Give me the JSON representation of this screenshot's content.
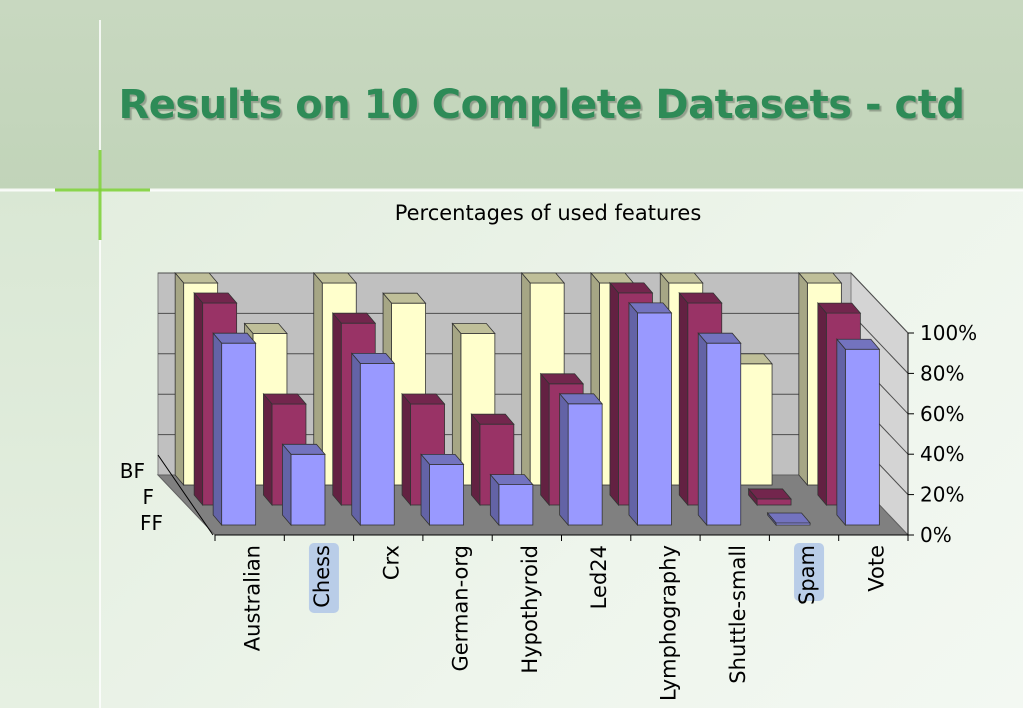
{
  "slide": {
    "title": "Results on 10 Complete Datasets - ctd"
  },
  "colors": {
    "BF": "#ffffcc",
    "F": "#993366",
    "FF": "#9999ff",
    "title": "#2e8b57",
    "highlight": "#b9cde8"
  },
  "chart_data": {
    "type": "bar",
    "title": "Percentages of used features",
    "categories": [
      "Australian",
      "Chess",
      "Crx",
      "German-org",
      "Hypothyroid",
      "Led24",
      "Lymphography",
      "Shuttle-small",
      "Spam",
      "Vote"
    ],
    "highlighted_categories": [
      "Chess",
      "Spam"
    ],
    "series": [
      {
        "name": "BF",
        "values": [
          100,
          75,
          100,
          90,
          75,
          100,
          100,
          100,
          60,
          100
        ]
      },
      {
        "name": "F",
        "values": [
          100,
          50,
          90,
          50,
          40,
          60,
          105,
          100,
          3,
          95
        ]
      },
      {
        "name": "FF",
        "values": [
          90,
          35,
          80,
          30,
          20,
          60,
          105,
          90,
          1,
          87
        ]
      }
    ],
    "ylim": [
      0,
      100
    ],
    "yticks": [
      "0%",
      "20%",
      "40%",
      "60%",
      "80%",
      "100%"
    ],
    "grid": true
  }
}
